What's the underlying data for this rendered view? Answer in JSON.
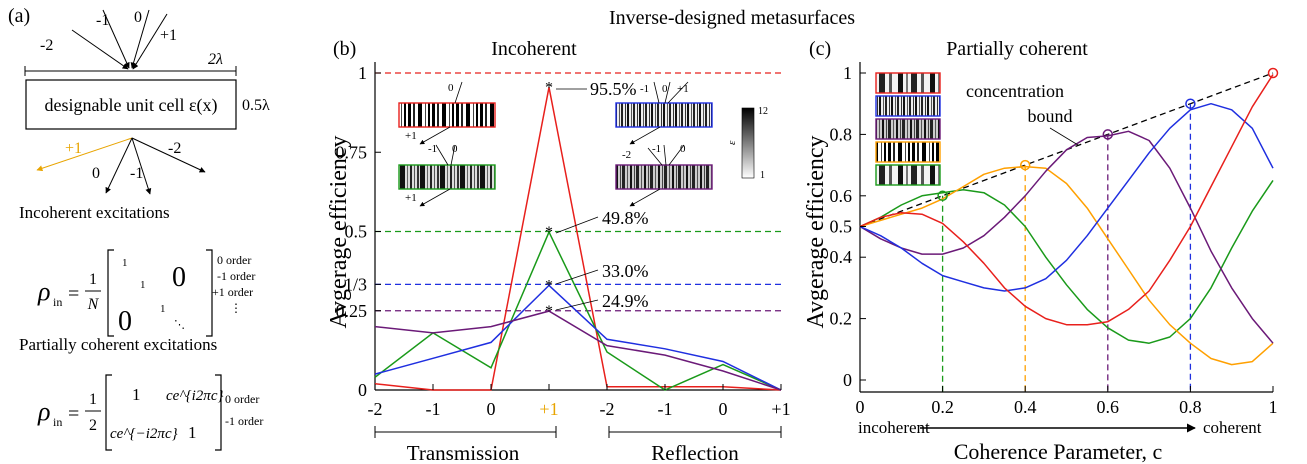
{
  "figure_title": "Inverse-designed metasurfaces",
  "panel_a": {
    "label": "(a)",
    "incident_orders": [
      "-2",
      "-1",
      "0",
      "+1"
    ],
    "period_label": "2λ",
    "cell_text": "designable unit cell ε(x)",
    "thickness_label": "0.5λ",
    "outgoing_orders": [
      "+1",
      "0",
      "-1",
      "-2"
    ],
    "incoherent_heading": "Incoherent excitations",
    "coherent_heading": "Partially coherent excitations",
    "rho_symbol": "ρ",
    "rho_sub": "in",
    "incoherent_prefactor_num": "1",
    "incoherent_prefactor_den": "N",
    "incoherent_matrix_big_zero_top": "0",
    "incoherent_matrix_big_zero_bottom": "0",
    "incoherent_diag": [
      "1",
      "1",
      "1"
    ],
    "incoherent_order_labels": [
      "0 order",
      "-1 order",
      "+1 order",
      "⋮"
    ],
    "coherent_prefactor_num": "1",
    "coherent_prefactor_den": "2",
    "coherent_m11": "1",
    "coherent_m12": "ce^{i2πc}",
    "coherent_m21": "ce^{−i2πc}",
    "coherent_m22": "1",
    "coherent_order_labels": [
      "0 order",
      "-1 order"
    ]
  },
  "chart_data": [
    {
      "panel_label": "(b)",
      "type": "line",
      "title": "Incoherent",
      "ylabel": "Avgerage efficiency",
      "categories": [
        "-2",
        "-1",
        "0",
        "+1",
        "-2",
        "-1",
        "0",
        "+1"
      ],
      "highlight_category_index": 3,
      "highlight_color": "#e8a400",
      "ylim": [
        0,
        1.05
      ],
      "yticks": [
        0,
        0.25,
        0.3333,
        0.5,
        0.75,
        1
      ],
      "ytick_labels": [
        "0",
        "0.25",
        "1/3",
        "0.5",
        "0.75",
        "1"
      ],
      "group_labels": [
        "Transmission",
        "Reflection"
      ],
      "series": [
        {
          "color": "#e8201c",
          "values": [
            0.02,
            0.0,
            0.0,
            0.955,
            0.01,
            0.01,
            0.01,
            0.0
          ]
        },
        {
          "color": "#1a9a1a",
          "values": [
            0.04,
            0.18,
            0.07,
            0.498,
            0.12,
            0.0,
            0.08,
            0.0
          ]
        },
        {
          "color": "#1f2fe0",
          "values": [
            0.05,
            0.1,
            0.15,
            0.33,
            0.16,
            0.13,
            0.09,
            0.0
          ]
        },
        {
          "color": "#6b1a78",
          "values": [
            0.2,
            0.18,
            0.2,
            0.249,
            0.14,
            0.11,
            0.06,
            0.0
          ]
        }
      ],
      "reference_lines": [
        {
          "y": 1.0,
          "color": "#e8201c"
        },
        {
          "y": 0.5,
          "color": "#1a9a1a"
        },
        {
          "y": 0.3333,
          "color": "#1f2fe0"
        },
        {
          "y": 0.25,
          "color": "#6b1a78"
        }
      ],
      "annotations": [
        "95.5%",
        "49.8%",
        "33.0%",
        "24.9%"
      ],
      "inset_orders_left_top": [
        "0",
        "+1"
      ],
      "inset_orders_left_bottom": [
        "-1",
        "0",
        "+1"
      ],
      "inset_orders_right_top": [
        "-1",
        "0",
        "+1"
      ],
      "inset_orders_right_bottom": [
        "-2",
        "-1",
        "0"
      ],
      "colorbar_labels": [
        "12",
        "ε",
        "1"
      ],
      "inset_border_colors": [
        "#e8201c",
        "#1f2fe0",
        "#1a9a1a",
        "#6b1a78"
      ]
    },
    {
      "panel_label": "(c)",
      "type": "line",
      "title": "Partially coherent",
      "ylabel": "Avgerage efficiency",
      "xlabel": "Coherence Parameter, c",
      "x_axis_left_word": "incoherent",
      "x_axis_right_word": "coherent",
      "xlim": [
        0,
        1
      ],
      "ylim": [
        0,
        1.0
      ],
      "xticks": [
        "0",
        "0.2",
        "0.4",
        "0.6",
        "0.8",
        "1"
      ],
      "ytick_labels": [
        "0",
        "0.2",
        "0.4",
        "0.5",
        "0.6",
        "0.8",
        "1"
      ],
      "bound_label_line1": "concentration",
      "bound_label_line2": "bound",
      "bound_color": "#000000",
      "x": [
        0,
        0.05,
        0.1,
        0.15,
        0.2,
        0.25,
        0.3,
        0.35,
        0.4,
        0.45,
        0.5,
        0.55,
        0.6,
        0.65,
        0.7,
        0.75,
        0.8,
        0.85,
        0.9,
        0.95,
        1.0
      ],
      "series": [
        {
          "color": "#1a9a1a",
          "values": [
            0.5,
            0.53,
            0.57,
            0.6,
            0.61,
            0.62,
            0.61,
            0.57,
            0.5,
            0.4,
            0.31,
            0.23,
            0.17,
            0.13,
            0.12,
            0.14,
            0.2,
            0.3,
            0.43,
            0.55,
            0.65
          ]
        },
        {
          "color": "#ffa000",
          "values": [
            0.5,
            0.52,
            0.54,
            0.56,
            0.59,
            0.63,
            0.67,
            0.69,
            0.695,
            0.69,
            0.64,
            0.56,
            0.46,
            0.36,
            0.26,
            0.18,
            0.12,
            0.07,
            0.05,
            0.06,
            0.12
          ]
        },
        {
          "color": "#6b1a78",
          "values": [
            0.5,
            0.46,
            0.43,
            0.41,
            0.41,
            0.43,
            0.47,
            0.53,
            0.6,
            0.68,
            0.75,
            0.79,
            0.795,
            0.81,
            0.78,
            0.69,
            0.56,
            0.42,
            0.3,
            0.2,
            0.12
          ]
        },
        {
          "color": "#1f2fe0",
          "values": [
            0.5,
            0.47,
            0.43,
            0.38,
            0.34,
            0.32,
            0.3,
            0.29,
            0.3,
            0.33,
            0.39,
            0.47,
            0.56,
            0.65,
            0.74,
            0.82,
            0.88,
            0.9,
            0.88,
            0.82,
            0.69
          ]
        },
        {
          "color": "#e8201c",
          "values": [
            0.5,
            0.53,
            0.545,
            0.54,
            0.51,
            0.45,
            0.38,
            0.3,
            0.24,
            0.2,
            0.18,
            0.18,
            0.19,
            0.23,
            0.29,
            0.39,
            0.5,
            0.63,
            0.76,
            0.89,
            0.995
          ]
        }
      ],
      "bound_points": [
        {
          "x": 0.2,
          "y": 0.6,
          "color": "#1a9a1a"
        },
        {
          "x": 0.4,
          "y": 0.7,
          "color": "#ffa000"
        },
        {
          "x": 0.6,
          "y": 0.8,
          "color": "#6b1a78"
        },
        {
          "x": 0.8,
          "y": 0.9,
          "color": "#1f2fe0"
        },
        {
          "x": 1.0,
          "y": 1.0,
          "color": "#e8201c"
        }
      ],
      "inset_border_colors": [
        "#e8201c",
        "#1f2fe0",
        "#6b1a78",
        "#ffa000",
        "#1a9a1a"
      ]
    }
  ]
}
